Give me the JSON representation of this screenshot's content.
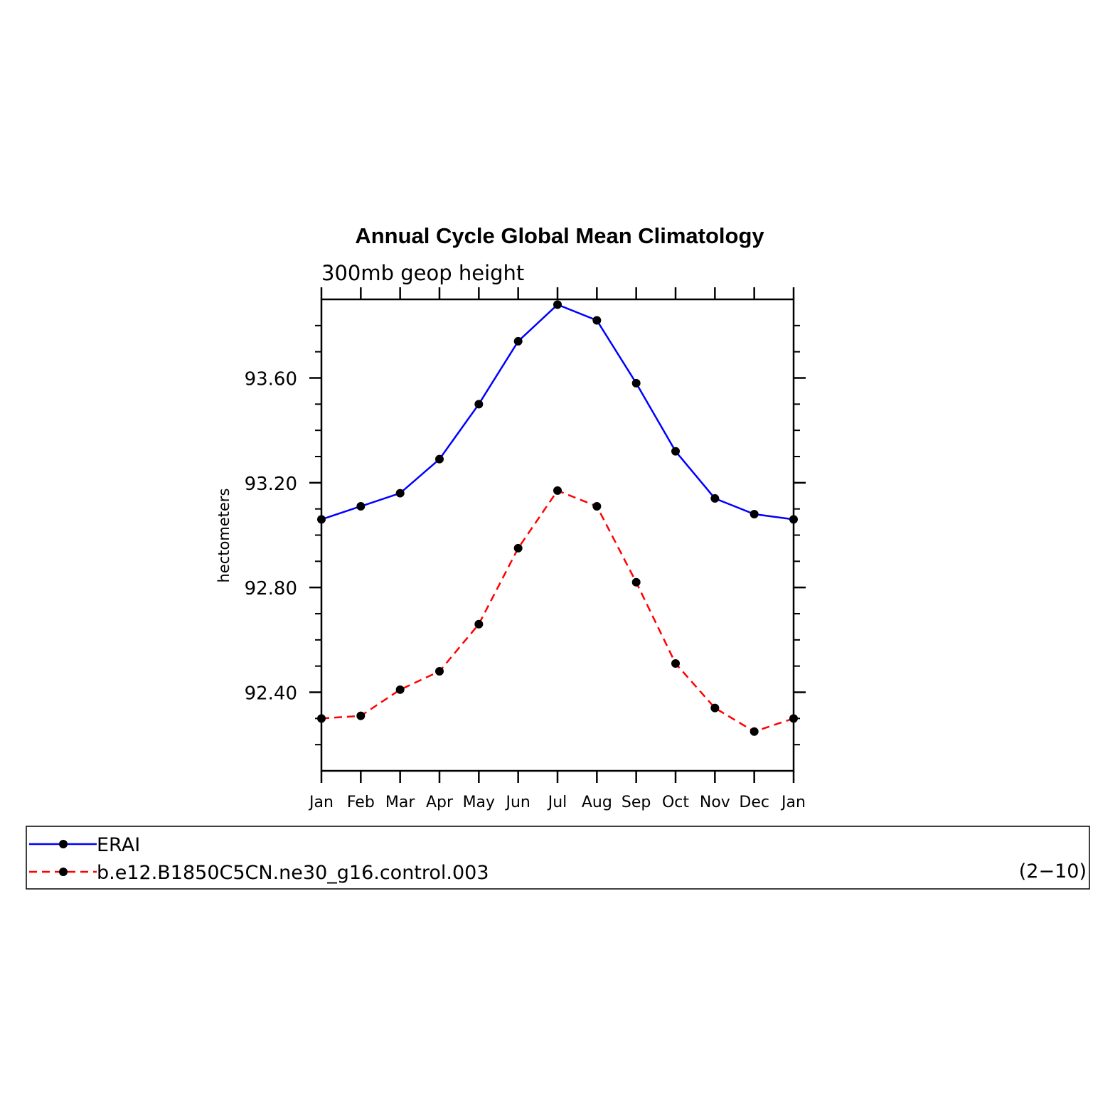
{
  "chart_data": {
    "type": "line",
    "title": "Annual Cycle Global Mean Climatology",
    "subtitle": "300mb geop height",
    "xlabel": "",
    "ylabel": "hectometers",
    "categories": [
      "Jan",
      "Feb",
      "Mar",
      "Apr",
      "May",
      "Jun",
      "Jul",
      "Aug",
      "Sep",
      "Oct",
      "Nov",
      "Dec",
      "Jan"
    ],
    "ylim": [
      92.1,
      93.9
    ],
    "yticks": [
      92.4,
      92.8,
      93.2,
      93.6
    ],
    "ytick_labels": [
      "92.40",
      "92.80",
      "93.20",
      "93.60"
    ],
    "grid": false,
    "series": [
      {
        "name": "ERAI",
        "color": "#0000ff",
        "dash": "solid",
        "marker": "dot",
        "values": [
          93.06,
          93.11,
          93.16,
          93.29,
          93.5,
          93.74,
          93.88,
          93.82,
          93.58,
          93.32,
          93.14,
          93.08,
          93.06
        ]
      },
      {
        "name": "b.e12.B1850C5CN.ne30_g16.control.003",
        "color": "#ff0000",
        "dash": "dashed",
        "marker": "dot",
        "values": [
          92.3,
          92.31,
          92.41,
          92.48,
          92.66,
          92.95,
          93.17,
          93.11,
          92.82,
          92.51,
          92.34,
          92.25,
          92.3
        ]
      }
    ],
    "legend": {
      "placement": "bottom",
      "annotation": "(2−10)"
    }
  }
}
